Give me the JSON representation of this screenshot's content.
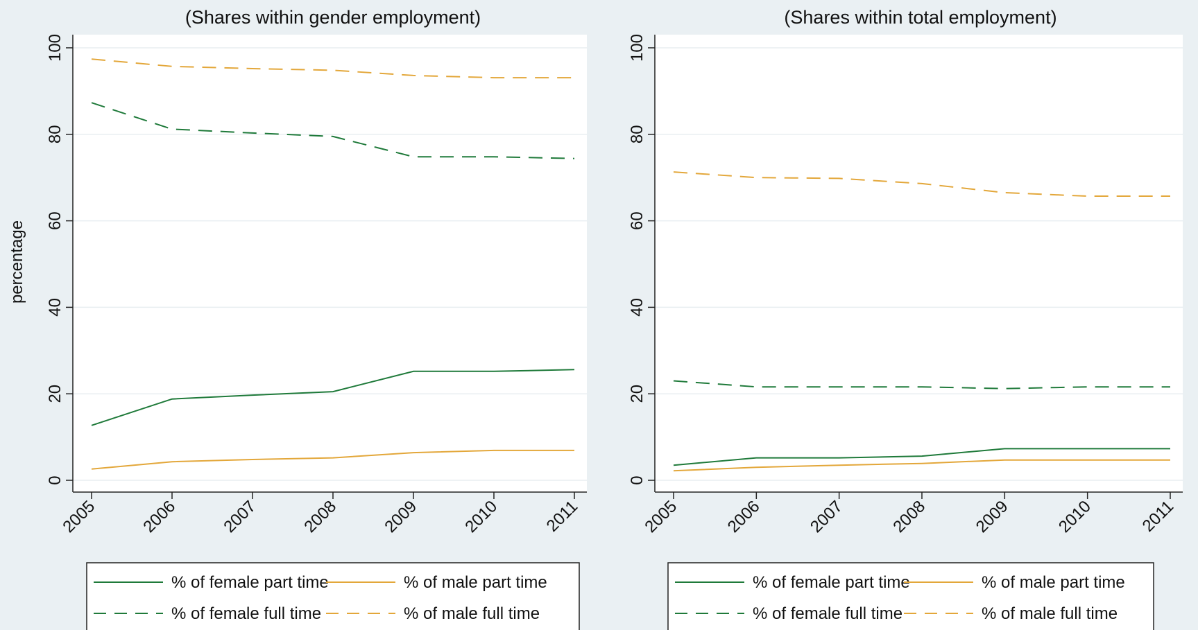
{
  "y_axis_label": "percentage",
  "colors": {
    "green": "#1f7a3a",
    "orange": "#e3a73a"
  },
  "chart_data": [
    {
      "type": "line",
      "title": "(Shares within gender employment)",
      "ylabel": "percentage",
      "xlabel": "",
      "x": [
        "2005",
        "2006",
        "2007",
        "2008",
        "2009",
        "2010",
        "2011"
      ],
      "ylim": [
        0,
        100
      ],
      "yticks": [
        0,
        20,
        40,
        60,
        80,
        100
      ],
      "grid": true,
      "legend_position": "bottom",
      "series": [
        {
          "name": "% of female part time",
          "color": "#1f7a3a",
          "style": "solid",
          "values": [
            12.7,
            18.8,
            19.7,
            20.5,
            25.2,
            25.2,
            25.6
          ]
        },
        {
          "name": "% of male part time",
          "color": "#e3a73a",
          "style": "solid",
          "values": [
            2.6,
            4.3,
            4.8,
            5.2,
            6.4,
            6.9,
            6.9
          ]
        },
        {
          "name": "% of female full time",
          "color": "#1f7a3a",
          "style": "dashed",
          "values": [
            87.3,
            81.2,
            80.3,
            79.5,
            74.8,
            74.8,
            74.4
          ]
        },
        {
          "name": "% of male full time",
          "color": "#e3a73a",
          "style": "dashed",
          "values": [
            97.4,
            95.7,
            95.2,
            94.8,
            93.6,
            93.1,
            93.1
          ]
        }
      ]
    },
    {
      "type": "line",
      "title": "(Shares within total employment)",
      "ylabel": "",
      "xlabel": "",
      "x": [
        "2005",
        "2006",
        "2007",
        "2008",
        "2009",
        "2010",
        "2011"
      ],
      "ylim": [
        0,
        100
      ],
      "yticks": [
        0,
        20,
        40,
        60,
        80,
        100
      ],
      "grid": true,
      "legend_position": "bottom",
      "series": [
        {
          "name": "% of female part time",
          "color": "#1f7a3a",
          "style": "solid",
          "values": [
            3.5,
            5.2,
            5.2,
            5.6,
            7.3,
            7.3,
            7.3
          ]
        },
        {
          "name": "% of male part time",
          "color": "#e3a73a",
          "style": "solid",
          "values": [
            2.2,
            3.0,
            3.5,
            3.9,
            4.7,
            4.7,
            4.7
          ]
        },
        {
          "name": "% of female full time",
          "color": "#1f7a3a",
          "style": "dashed",
          "values": [
            23.0,
            21.6,
            21.6,
            21.6,
            21.2,
            21.6,
            21.6
          ]
        },
        {
          "name": "% of male full time",
          "color": "#e3a73a",
          "style": "dashed",
          "values": [
            71.3,
            70.0,
            69.8,
            68.6,
            66.5,
            65.7,
            65.7
          ]
        }
      ]
    }
  ]
}
